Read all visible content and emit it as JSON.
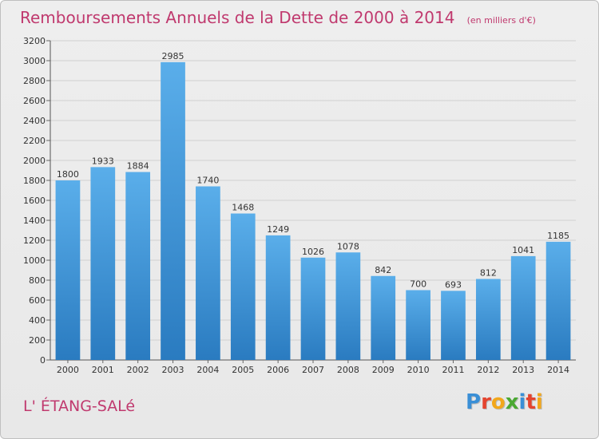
{
  "header": {
    "title": "Remboursements Annuels de la Dette de 2000 à 2014",
    "unit": "(en milliers d'€)"
  },
  "footer": {
    "commune": "L' ÉTANG-SALé",
    "logo": {
      "text": "Proxiti",
      "letters": [
        {
          "char": "P",
          "color": "#3a8fd6"
        },
        {
          "char": "r",
          "color": "#e4442f"
        },
        {
          "char": "o",
          "color": "#f2a71b"
        },
        {
          "char": "x",
          "color": "#4aa832"
        },
        {
          "char": "i",
          "color": "#3a8fd6"
        },
        {
          "char": "t",
          "color": "#e4442f"
        },
        {
          "char": "i",
          "color": "#f2a71b"
        }
      ]
    }
  },
  "colors": {
    "bar_top": "#5aaeea",
    "bar_bottom": "#2a7bc0",
    "title": "#c0396e",
    "grid": "#d0d0d0"
  },
  "chart_data": {
    "type": "bar",
    "title": "Remboursements Annuels de la Dette de 2000 à 2014",
    "categories": [
      "2000",
      "2001",
      "2002",
      "2003",
      "2004",
      "2005",
      "2006",
      "2007",
      "2008",
      "2009",
      "2010",
      "2011",
      "2012",
      "2013",
      "2014"
    ],
    "values": [
      1800,
      1933,
      1884,
      2985,
      1740,
      1468,
      1249,
      1026,
      1078,
      842,
      700,
      693,
      812,
      1041,
      1185
    ],
    "ylim": [
      0,
      3200
    ],
    "yticks": [
      0,
      200,
      400,
      600,
      800,
      1000,
      1200,
      1400,
      1600,
      1800,
      2000,
      2200,
      2400,
      2600,
      2800,
      3000,
      3200
    ],
    "grid": true
  }
}
